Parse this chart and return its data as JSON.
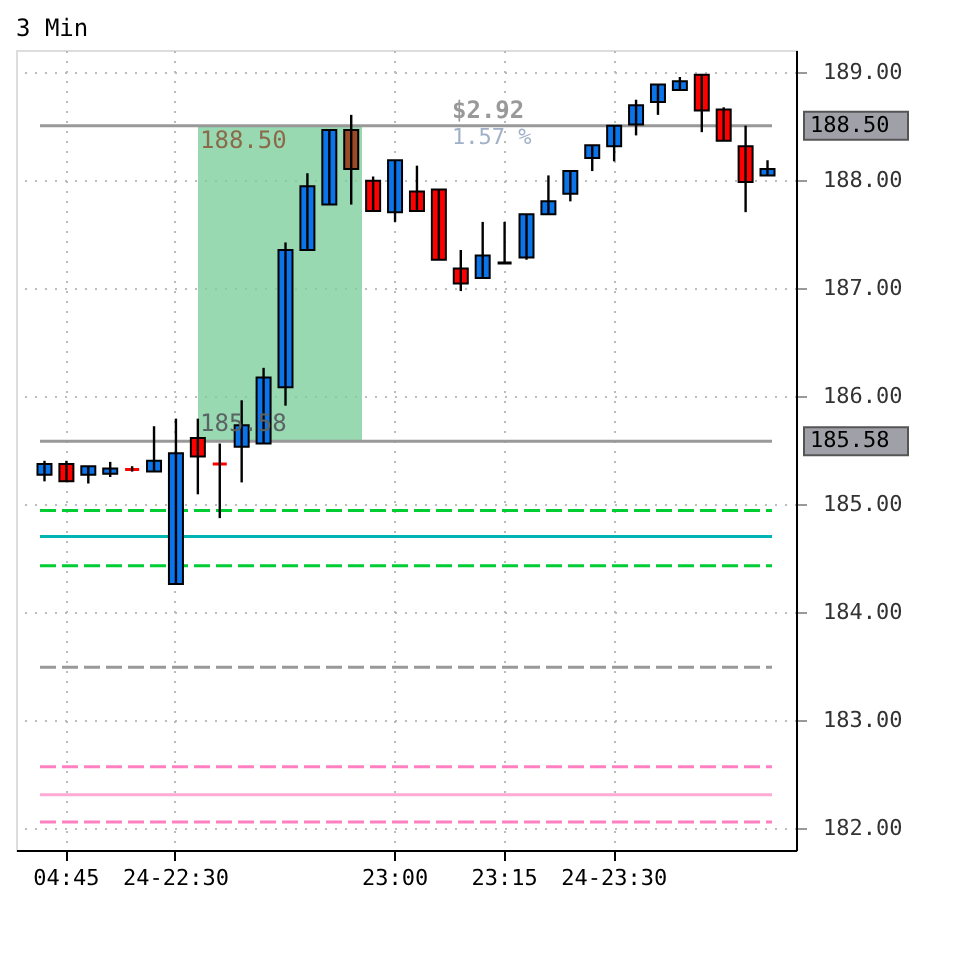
{
  "chart_data": {
    "type": "candlestick",
    "title": "3 Min",
    "categories": [
      null,
      "04:45",
      null,
      null,
      null,
      null,
      "24-22:30",
      null,
      null,
      null,
      null,
      null,
      null,
      null,
      null,
      null,
      "23:00",
      null,
      null,
      null,
      null,
      "23:15",
      null,
      null,
      null,
      null,
      "24-23:30",
      null,
      null,
      null,
      null,
      null,
      null,
      null
    ],
    "ohlc": [
      [
        185.27,
        185.4,
        185.21,
        185.37
      ],
      [
        185.37,
        185.4,
        185.21,
        185.21
      ],
      [
        185.27,
        185.35,
        185.19,
        185.35
      ],
      [
        185.28,
        185.39,
        185.25,
        185.33
      ],
      [
        185.32,
        185.35,
        185.3,
        185.32
      ],
      [
        185.3,
        185.72,
        185.3,
        185.4
      ],
      [
        184.26,
        185.79,
        184.26,
        185.47
      ],
      [
        185.61,
        185.79,
        185.09,
        185.44
      ],
      [
        185.37,
        185.56,
        184.87,
        185.37
      ],
      [
        185.53,
        185.96,
        185.2,
        185.73
      ],
      [
        185.56,
        186.26,
        185.56,
        186.17
      ],
      [
        186.08,
        187.42,
        185.91,
        187.35
      ],
      [
        187.35,
        188.06,
        187.35,
        187.94
      ],
      [
        187.77,
        188.46,
        187.77,
        188.46
      ],
      [
        188.46,
        188.6,
        187.77,
        188.1
      ],
      [
        187.99,
        188.03,
        187.71,
        187.71
      ],
      [
        187.7,
        188.18,
        187.61,
        188.18
      ],
      [
        187.89,
        188.13,
        187.71,
        187.71
      ],
      [
        187.91,
        187.91,
        187.26,
        187.26
      ],
      [
        187.18,
        187.35,
        186.97,
        187.04
      ],
      [
        187.09,
        187.61,
        187.09,
        187.3
      ],
      [
        187.23,
        187.61,
        187.23,
        187.23
      ],
      [
        187.28,
        187.68,
        187.26,
        187.68
      ],
      [
        187.68,
        188.04,
        187.68,
        187.8
      ],
      [
        187.87,
        188.08,
        187.8,
        188.08
      ],
      [
        188.2,
        188.32,
        188.08,
        188.32
      ],
      [
        188.31,
        188.5,
        188.17,
        188.5
      ],
      [
        188.51,
        188.74,
        188.41,
        188.69
      ],
      [
        188.72,
        188.88,
        188.6,
        188.88
      ],
      [
        188.83,
        188.95,
        188.83,
        188.91
      ],
      [
        188.97,
        188.97,
        188.44,
        188.64
      ],
      [
        188.65,
        188.67,
        188.36,
        188.36
      ],
      [
        188.31,
        188.5,
        187.7,
        187.98
      ],
      [
        188.04,
        188.18,
        188.04,
        188.1
      ]
    ],
    "colors": [
      "#0a74e8",
      "#ff0000",
      "#0a74e8",
      "#0a74e8",
      "#ff0000",
      "#0a74e8",
      "#0a74e8",
      "#ff0000",
      "#ff0000",
      "#0a74e8",
      "#0a74e8",
      "#0a74e8",
      "#0a74e8",
      "#0a74e8",
      "#9a4a26",
      "#ff0000",
      "#0a74e8",
      "#ff0000",
      "#ff0000",
      "#ff0000",
      "#0a74e8",
      "#000000",
      "#0a74e8",
      "#0a74e8",
      "#0a74e8",
      "#0a74e8",
      "#0a74e8",
      "#0a74e8",
      "#0a74e8",
      "#0a74e8",
      "#ff0000",
      "#ff0000",
      "#ff0000",
      "#0a74e8"
    ],
    "ylim": [
      181.8,
      189.2
    ],
    "yticks": [
      {
        "value": 182,
        "label": "182.00"
      },
      {
        "value": 183,
        "label": "183.00"
      },
      {
        "value": 184,
        "label": "184.00"
      },
      {
        "value": 185,
        "label": "185.00"
      },
      {
        "value": 186,
        "label": "186.00"
      },
      {
        "value": 187,
        "label": "187.00"
      },
      {
        "value": 188,
        "label": "188.00"
      },
      {
        "value": 189,
        "label": "189.00"
      }
    ],
    "grid": true,
    "bands": [
      {
        "axis": "y",
        "from": 185.58,
        "to": 188.5,
        "color": "#7fcf9f"
      }
    ],
    "ref_lines": [
      {
        "axis": "y",
        "value": 188.5,
        "label": "188.50",
        "color": "#999999",
        "line_style": "solid"
      },
      {
        "axis": "y",
        "value": 185.58,
        "label": "185.58",
        "color": "#999999",
        "line_style": "solid"
      },
      {
        "axis": "y",
        "value": 184.94,
        "color": "#00cc33",
        "line_style": "dashed"
      },
      {
        "axis": "y",
        "value": 184.7,
        "color": "#00b4b4",
        "line_style": "solid"
      },
      {
        "axis": "y",
        "value": 184.43,
        "color": "#00cc33",
        "line_style": "dashed"
      },
      {
        "axis": "y",
        "value": 183.49,
        "color": "#999999",
        "line_style": "dashed"
      },
      {
        "axis": "y",
        "value": 182.57,
        "color": "#ff80c0",
        "line_style": "dashed"
      },
      {
        "axis": "y",
        "value": 182.31,
        "color": "#ffaad4",
        "line_style": "solid"
      },
      {
        "axis": "y",
        "value": 182.06,
        "color": "#ff80c0",
        "line_style": "dashed"
      }
    ],
    "annotations": [
      {
        "text": "188.50",
        "y": 188.5
      },
      {
        "text": "185.58",
        "y": 185.58
      },
      {
        "text": "$2.92",
        "y": 188.5
      },
      {
        "text": "1.57 %",
        "y": 188.5
      }
    ]
  }
}
